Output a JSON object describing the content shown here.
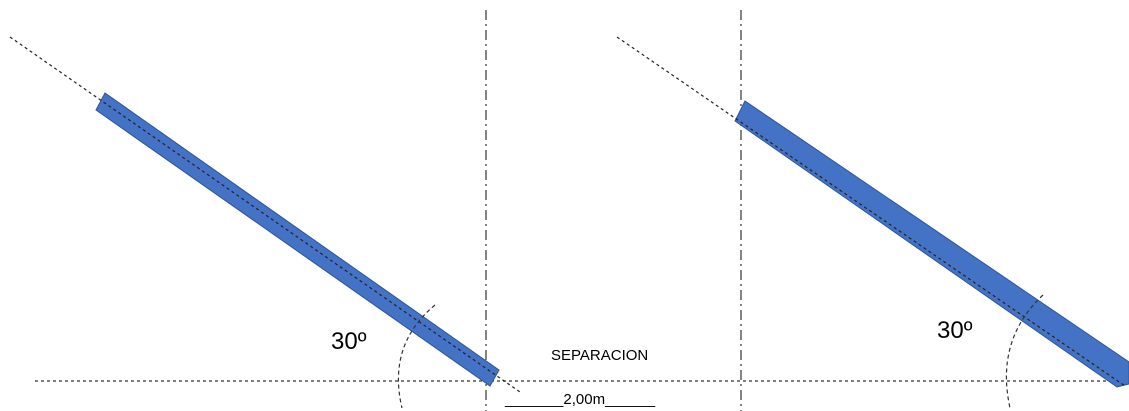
{
  "diagram": {
    "left_angle_label": "30º",
    "right_angle_label": "30º",
    "separation_label": "SEPARACION",
    "distance_label": "_______2,00m______"
  },
  "colors": {
    "panel_fill": "#4472c4",
    "panel_stroke": "#2f5597",
    "line": "#333333"
  }
}
